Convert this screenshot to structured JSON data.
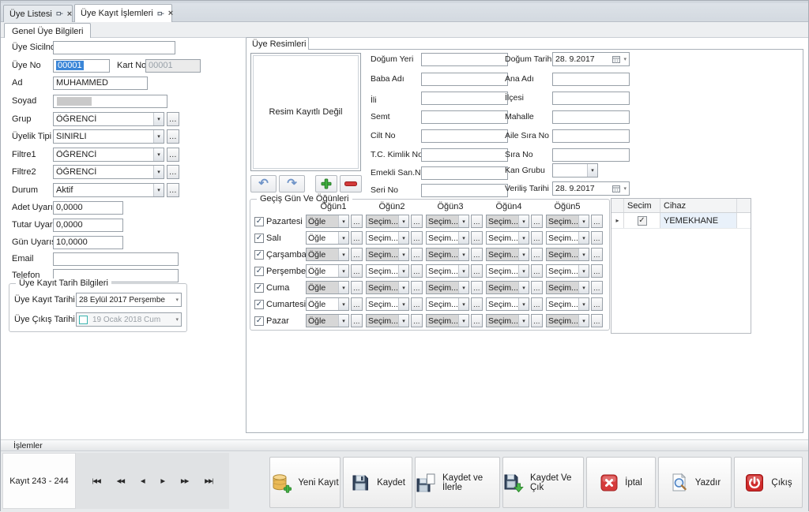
{
  "icons": {
    "check": "✓",
    "dropdown": "▾",
    "ellipsis": "…",
    "row_selector": "▸",
    "close": "×",
    "undo": "↶",
    "redo": "↷"
  },
  "tabs": {
    "tab1": "Üye Listesi",
    "tab2": "Üye Kayıt İşlemleri",
    "subtab": "Genel Üye Bilgileri"
  },
  "left": {
    "uye_sicilno_label": "Üye Sicilno",
    "uye_sicilno_value": "",
    "uye_no_label": "Üye No",
    "uye_no_value": "00001",
    "kart_no_label": "Kart No",
    "kart_no_value": "00001",
    "ad_label": "Ad",
    "ad_value": "MUHAMMED",
    "soyad_label": "Soyad",
    "soyad_value": "",
    "grup_label": "Grup",
    "grup_value": "ÖĞRENCİ",
    "uyelik_tipi_label": "Üyelik Tipi",
    "uyelik_tipi_value": "SINIRLI",
    "filtre1_label": "Filtre1",
    "filtre1_value": "ÖĞRENCİ",
    "filtre2_label": "Filtre2",
    "filtre2_value": "ÖĞRENCİ",
    "durum_label": "Durum",
    "durum_value": "Aktif",
    "adet_label": "Adet Uyarısı",
    "adet_value": "0,0000",
    "tutar_label": "Tutar Uyarısı",
    "tutar_value": "0,0000",
    "gun_label": "Gün Uyarısı",
    "gun_value": "10,0000",
    "email_label": "Email",
    "email_value": "",
    "telefon_label": "Telefon",
    "telefon_value": "",
    "tarih_group_title": "Üye Kayıt Tarih Bilgileri",
    "kayit_tarihi_label": "Üye Kayıt Tarihi",
    "kayit_tarihi_value": "28  Eylül   2017 Perşembe",
    "cikis_tarihi_label": "Üye Çıkış Tarihi",
    "cikis_tarihi_value": "19  Ocak   2018    Cum"
  },
  "resim": {
    "tab_label": "Üye Resimleri",
    "placeholder": "Resim Kayıtlı Değil"
  },
  "detail": {
    "dogum_yeri": "Doğum Yeri",
    "baba_adi": "Baba Adı",
    "ili": "İli",
    "semt": "Semt",
    "cilt_no": "Cilt No",
    "tc_kimlik": "T.C. Kimlik No",
    "emekli": "Emekli San.No",
    "seri_no": "Seri No",
    "dogum_tarihi_label": "Doğum Tarihi",
    "dogum_tarihi_value": "28. 9.2017",
    "ana_adi": "Ana Adı",
    "ilcesi": "İlçesi",
    "mahalle": "Mahalle",
    "aile_sira_no": "Aile Sıra No",
    "sira_no": "Sıra No",
    "kan_grubu_label": "Kan Grubu",
    "kan_grubu_value": "",
    "verilis_label": "Veriliş Tarihi",
    "verilis_value": "28. 9.2017"
  },
  "meals": {
    "title": "Geçiş Gün Ve Öğünleri",
    "columns": [
      "Öğün1",
      "Öğün2",
      "Öğün3",
      "Öğün4",
      "Öğün5"
    ],
    "rows": [
      {
        "day": "Pazartesi",
        "checked": true,
        "values": [
          "Öğle",
          "Seçim...",
          "Seçim...",
          "Seçim...",
          "Seçim..."
        ]
      },
      {
        "day": "Salı",
        "checked": true,
        "values": [
          "Öğle",
          "Seçim...",
          "Seçim...",
          "Seçim...",
          "Seçim..."
        ]
      },
      {
        "day": "Çarşamba",
        "checked": true,
        "values": [
          "Öğle",
          "Seçim...",
          "Seçim...",
          "Seçim...",
          "Seçim..."
        ]
      },
      {
        "day": "Perşembe",
        "checked": true,
        "values": [
          "Öğle",
          "Seçim...",
          "Seçim...",
          "Seçim...",
          "Seçim..."
        ]
      },
      {
        "day": "Cuma",
        "checked": true,
        "values": [
          "Öğle",
          "Seçim...",
          "Seçim...",
          "Seçim...",
          "Seçim..."
        ]
      },
      {
        "day": "Cumartesi",
        "checked": true,
        "values": [
          "Öğle",
          "Seçim...",
          "Seçim...",
          "Seçim...",
          "Seçim..."
        ]
      },
      {
        "day": "Pazar",
        "checked": true,
        "values": [
          "Öğle",
          "Seçim...",
          "Seçim...",
          "Seçim...",
          "Seçim..."
        ]
      }
    ]
  },
  "devices": {
    "columns": [
      "Secim",
      "Cihaz"
    ],
    "rows": [
      {
        "secim": true,
        "cihaz": "YEMEKHANE"
      }
    ]
  },
  "bottom": {
    "panel_title": "İşlemler",
    "record_label": "Kayıt 243 - 244",
    "nav": [
      "|◀◀",
      "◀◀",
      "◀",
      "▶",
      "▶▶",
      "▶▶|"
    ],
    "buttons": [
      {
        "label": "Yeni Kayıt"
      },
      {
        "label": "Kaydet"
      },
      {
        "label": "Kaydet ve İlerle"
      },
      {
        "label": "Kaydet Ve Çık"
      },
      {
        "label": "İptal"
      },
      {
        "label": "Yazdır"
      },
      {
        "label": "Çıkış"
      }
    ]
  }
}
